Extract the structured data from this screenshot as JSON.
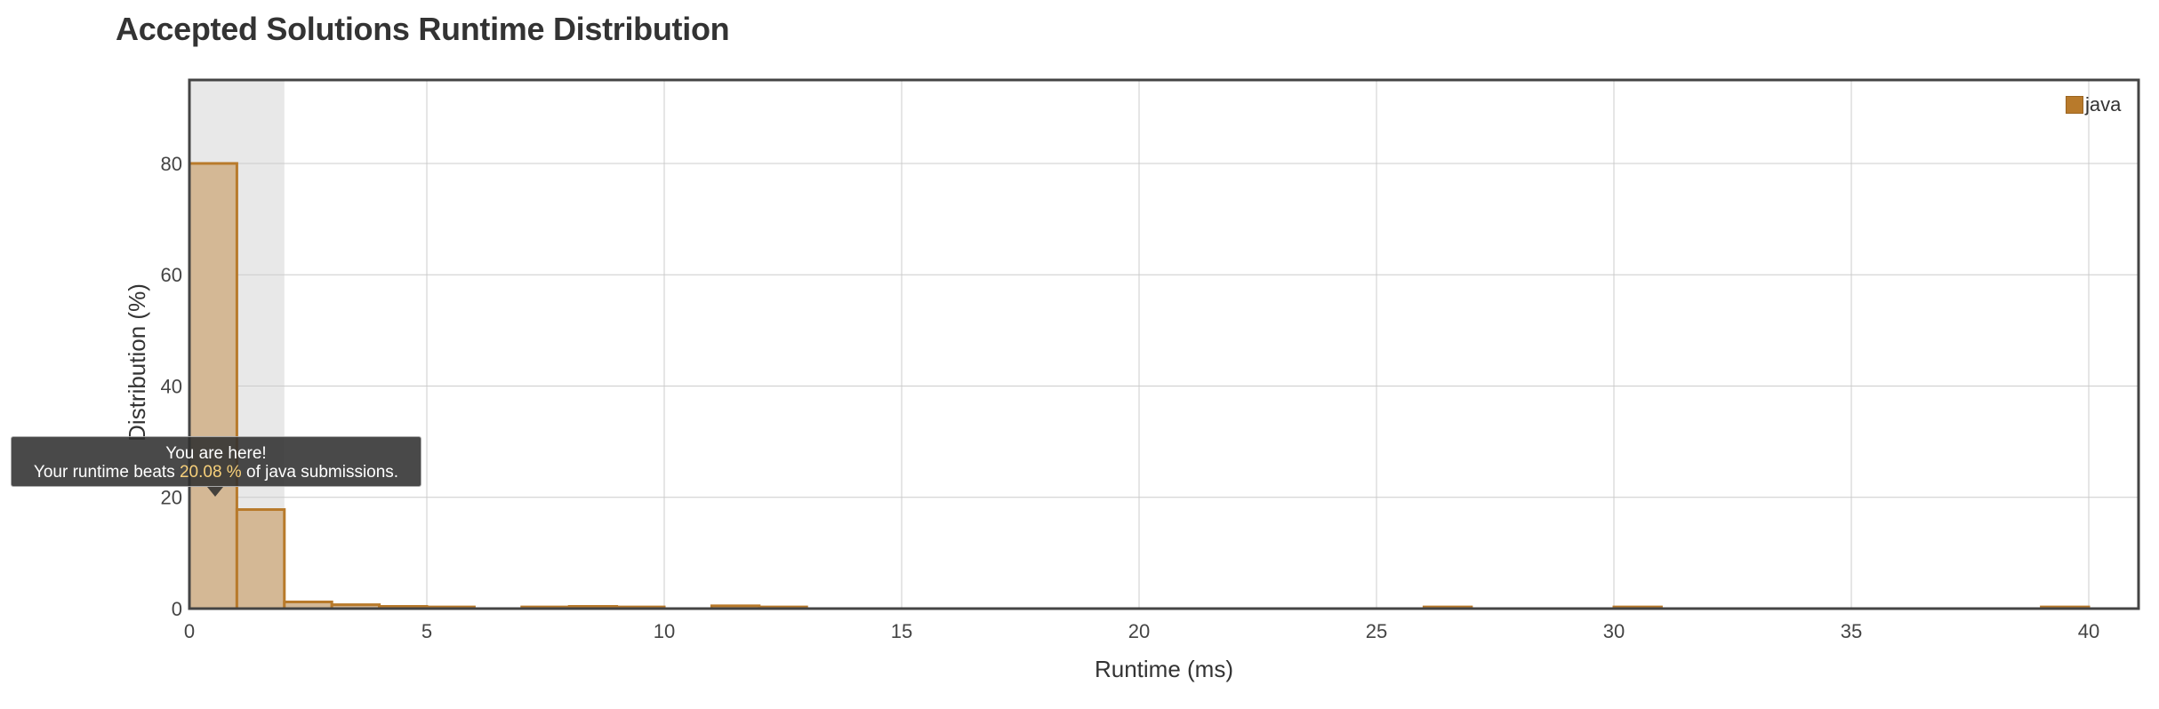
{
  "page": {
    "title": "Accepted Solutions Runtime Distribution"
  },
  "tooltip": {
    "line1": "You are here!",
    "line2_prefix": "Your runtime beats ",
    "line2_value": "20.08 %",
    "line2_suffix": " of java submissions."
  },
  "legend": {
    "label": "java",
    "color": "#b87a2b"
  },
  "colors": {
    "bar_fill": "#d4b895",
    "bar_stroke": "#b87a2b",
    "highlight_band": "#e8e8e8",
    "grid": "#cccccc",
    "frame": "#444444"
  },
  "chart_data": {
    "type": "bar",
    "xlabel": "Runtime (ms)",
    "ylabel": "Distribution (%)",
    "xlim": [
      0,
      41
    ],
    "ylim": [
      0,
      95
    ],
    "x_ticks": [
      0,
      5,
      10,
      15,
      20,
      25,
      30,
      35,
      40
    ],
    "y_ticks": [
      0,
      20,
      40,
      60,
      80
    ],
    "grid": true,
    "legend_position": "top-right",
    "highlight_range": [
      0,
      2
    ],
    "series": [
      {
        "name": "java",
        "bin_width": 1,
        "bins": [
          {
            "x": 0,
            "value": 80
          },
          {
            "x": 1,
            "value": 17.8
          },
          {
            "x": 2,
            "value": 1.2
          },
          {
            "x": 3,
            "value": 0.7
          },
          {
            "x": 4,
            "value": 0.4
          },
          {
            "x": 5,
            "value": 0.3
          },
          {
            "x": 7,
            "value": 0.3
          },
          {
            "x": 8,
            "value": 0.4
          },
          {
            "x": 9,
            "value": 0.3
          },
          {
            "x": 11,
            "value": 0.5
          },
          {
            "x": 12,
            "value": 0.3
          },
          {
            "x": 26,
            "value": 0.3
          },
          {
            "x": 30,
            "value": 0.3
          },
          {
            "x": 39,
            "value": 0.3
          }
        ]
      }
    ]
  }
}
